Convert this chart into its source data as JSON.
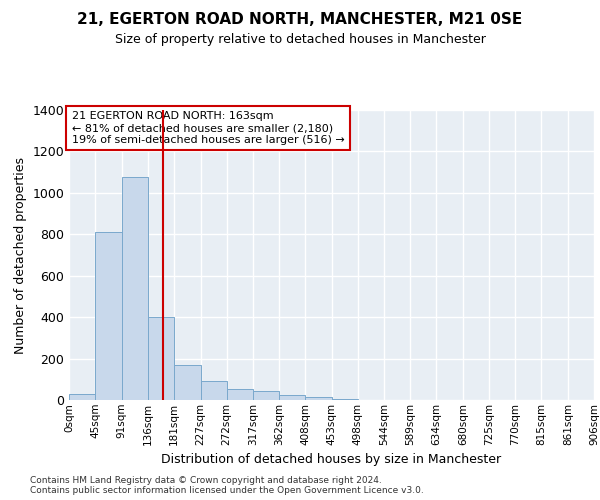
{
  "title": "21, EGERTON ROAD NORTH, MANCHESTER, M21 0SE",
  "subtitle": "Size of property relative to detached houses in Manchester",
  "xlabel": "Distribution of detached houses by size in Manchester",
  "ylabel": "Number of detached properties",
  "bar_color": "#c8d8eb",
  "bar_edge_color": "#7aa8cc",
  "background_color": "#e8eef4",
  "grid_color": "#ffffff",
  "property_size": 163,
  "annotation_text": "21 EGERTON ROAD NORTH: 163sqm\n← 81% of detached houses are smaller (2,180)\n19% of semi-detached houses are larger (516) →",
  "vline_color": "#cc0000",
  "bin_edges": [
    0,
    45,
    91,
    136,
    181,
    227,
    272,
    317,
    362,
    408,
    453,
    498,
    544,
    589,
    634,
    680,
    725,
    770,
    815,
    861,
    906
  ],
  "bin_counts": [
    30,
    810,
    1075,
    400,
    170,
    90,
    55,
    45,
    25,
    15,
    5,
    0,
    0,
    0,
    0,
    0,
    0,
    0,
    0,
    0
  ],
  "ylim": [
    0,
    1400
  ],
  "yticks": [
    0,
    200,
    400,
    600,
    800,
    1000,
    1200,
    1400
  ],
  "xlim": [
    0,
    906
  ],
  "footer": "Contains HM Land Registry data © Crown copyright and database right 2024.\nContains public sector information licensed under the Open Government Licence v3.0.",
  "tick_labels": [
    "0sqm",
    "45sqm",
    "91sqm",
    "136sqm",
    "181sqm",
    "227sqm",
    "272sqm",
    "317sqm",
    "362sqm",
    "408sqm",
    "453sqm",
    "498sqm",
    "544sqm",
    "589sqm",
    "634sqm",
    "680sqm",
    "725sqm",
    "770sqm",
    "815sqm",
    "861sqm",
    "906sqm"
  ]
}
